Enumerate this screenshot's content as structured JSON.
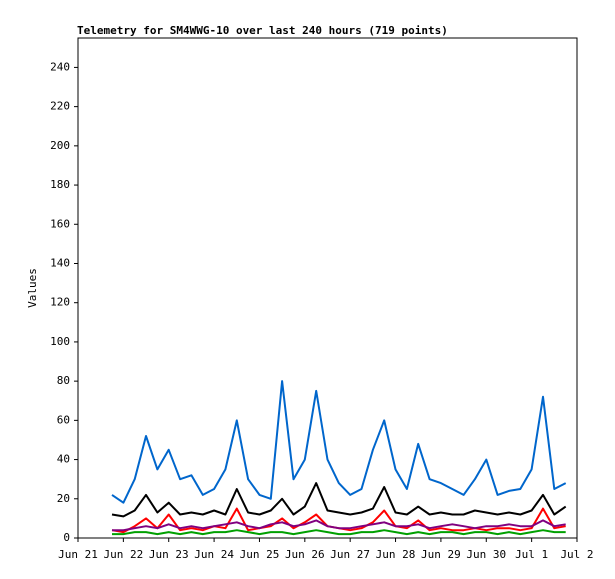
{
  "chart_data": {
    "type": "line",
    "title": "Telemetry for SM4WWG-10 over last 240 hours (719 points)",
    "y_label": "Values",
    "x": [
      21.75,
      22,
      22.25,
      22.5,
      22.75,
      23,
      23.25,
      23.5,
      23.75,
      24,
      24.25,
      24.5,
      24.75,
      25,
      25.25,
      25.5,
      25.75,
      26,
      26.25,
      26.5,
      26.75,
      27,
      27.25,
      27.5,
      27.75,
      28,
      28.25,
      28.5,
      28.75,
      29,
      29.25,
      29.5,
      29.75,
      30,
      30.25,
      30.5,
      30.75,
      31,
      31.25,
      31.5,
      31.75
    ],
    "series": [
      {
        "color": "#0066cc",
        "values": [
          22,
          18,
          30,
          52,
          35,
          45,
          30,
          32,
          22,
          25,
          35,
          60,
          30,
          22,
          20,
          80,
          30,
          40,
          75,
          40,
          28,
          22,
          25,
          45,
          60,
          35,
          25,
          48,
          30,
          28,
          25,
          22,
          30,
          40,
          22,
          24,
          25,
          35,
          72,
          25,
          28
        ]
      },
      {
        "color": "#000000",
        "values": [
          12,
          11,
          14,
          22,
          13,
          18,
          12,
          13,
          12,
          14,
          12,
          25,
          13,
          12,
          14,
          20,
          12,
          16,
          28,
          14,
          13,
          12,
          13,
          15,
          26,
          13,
          12,
          16,
          12,
          13,
          12,
          12,
          14,
          13,
          12,
          13,
          12,
          14,
          22,
          12,
          16
        ]
      },
      {
        "color": "#ff0000",
        "values": [
          4,
          3,
          6,
          10,
          5,
          12,
          4,
          5,
          4,
          6,
          5,
          15,
          4,
          5,
          6,
          10,
          5,
          8,
          12,
          6,
          5,
          4,
          5,
          8,
          14,
          6,
          5,
          9,
          4,
          5,
          4,
          4,
          5,
          4,
          5,
          5,
          4,
          5,
          15,
          5,
          6
        ]
      },
      {
        "color": "#800080",
        "values": [
          4,
          4,
          5,
          6,
          5,
          7,
          5,
          6,
          5,
          6,
          7,
          8,
          6,
          5,
          7,
          8,
          6,
          7,
          9,
          6,
          5,
          5,
          6,
          7,
          8,
          6,
          6,
          7,
          5,
          6,
          7,
          6,
          5,
          6,
          6,
          7,
          6,
          6,
          9,
          6,
          7
        ]
      },
      {
        "color": "#00a000",
        "values": [
          2,
          2,
          3,
          3,
          2,
          3,
          2,
          3,
          2,
          3,
          3,
          4,
          3,
          2,
          3,
          3,
          2,
          3,
          4,
          3,
          2,
          2,
          3,
          3,
          4,
          3,
          2,
          3,
          2,
          3,
          3,
          2,
          3,
          3,
          2,
          3,
          2,
          3,
          4,
          3,
          3
        ]
      }
    ],
    "xlim": [
      21,
      32
    ],
    "xticks": [
      {
        "value": 21,
        "label": "Jun 21"
      },
      {
        "value": 22,
        "label": "Jun 22"
      },
      {
        "value": 23,
        "label": "Jun 23"
      },
      {
        "value": 24,
        "label": "Jun 24"
      },
      {
        "value": 25,
        "label": "Jun 25"
      },
      {
        "value": 26,
        "label": "Jun 26"
      },
      {
        "value": 27,
        "label": "Jun 27"
      },
      {
        "value": 28,
        "label": "Jun 28"
      },
      {
        "value": 29,
        "label": "Jun 29"
      },
      {
        "value": 30,
        "label": "Jun 30"
      },
      {
        "value": 31,
        "label": "Jul 1"
      },
      {
        "value": 32,
        "label": "Jul 2"
      }
    ],
    "ylim": [
      0,
      255
    ],
    "yticks": [
      0,
      20,
      40,
      60,
      80,
      100,
      120,
      140,
      160,
      180,
      200,
      220,
      240
    ]
  }
}
